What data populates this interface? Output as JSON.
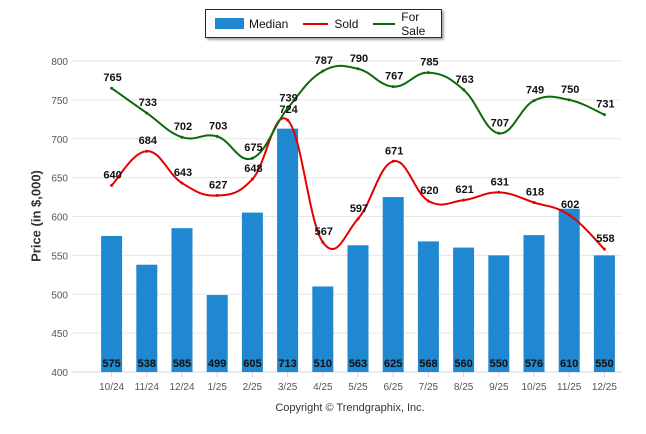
{
  "chart_data": {
    "type": "bar",
    "title": "",
    "xlabel": "",
    "ylabel": "Price (in $,000)",
    "ylim": [
      400,
      800
    ],
    "yticks": [
      400,
      450,
      500,
      550,
      600,
      650,
      700,
      750,
      800
    ],
    "grid": true,
    "legend_position": "top-center",
    "categories": [
      "10/24",
      "11/24",
      "12/24",
      "1/25",
      "2/25",
      "3/25",
      "4/25",
      "5/25",
      "6/25",
      "7/25",
      "8/25",
      "9/25",
      "10/25",
      "11/25",
      "12/25"
    ],
    "series": [
      {
        "name": "Median",
        "kind": "bar",
        "color": "#1f88d0",
        "values": [
          575,
          538,
          585,
          499,
          605,
          713,
          510,
          563,
          625,
          568,
          560,
          550,
          576,
          610,
          550
        ]
      },
      {
        "name": "Sold",
        "kind": "line",
        "color": "#e40000",
        "values": [
          640,
          684,
          643,
          627,
          648,
          724,
          567,
          597,
          671,
          620,
          621,
          631,
          618,
          602,
          558
        ]
      },
      {
        "name": "For Sale",
        "kind": "line",
        "color": "#0b6b0b",
        "values": [
          765,
          733,
          702,
          703,
          675,
          739,
          787,
          790,
          767,
          785,
          763,
          707,
          749,
          750,
          731
        ]
      }
    ]
  },
  "legend": {
    "items": [
      {
        "label": "Median",
        "color": "#1f88d0"
      },
      {
        "label": "Sold",
        "color": "#e40000"
      },
      {
        "label": "For Sale",
        "color": "#0b6b0b"
      }
    ]
  },
  "footer": {
    "copyright": "Copyright © Trendgraphix, Inc."
  }
}
